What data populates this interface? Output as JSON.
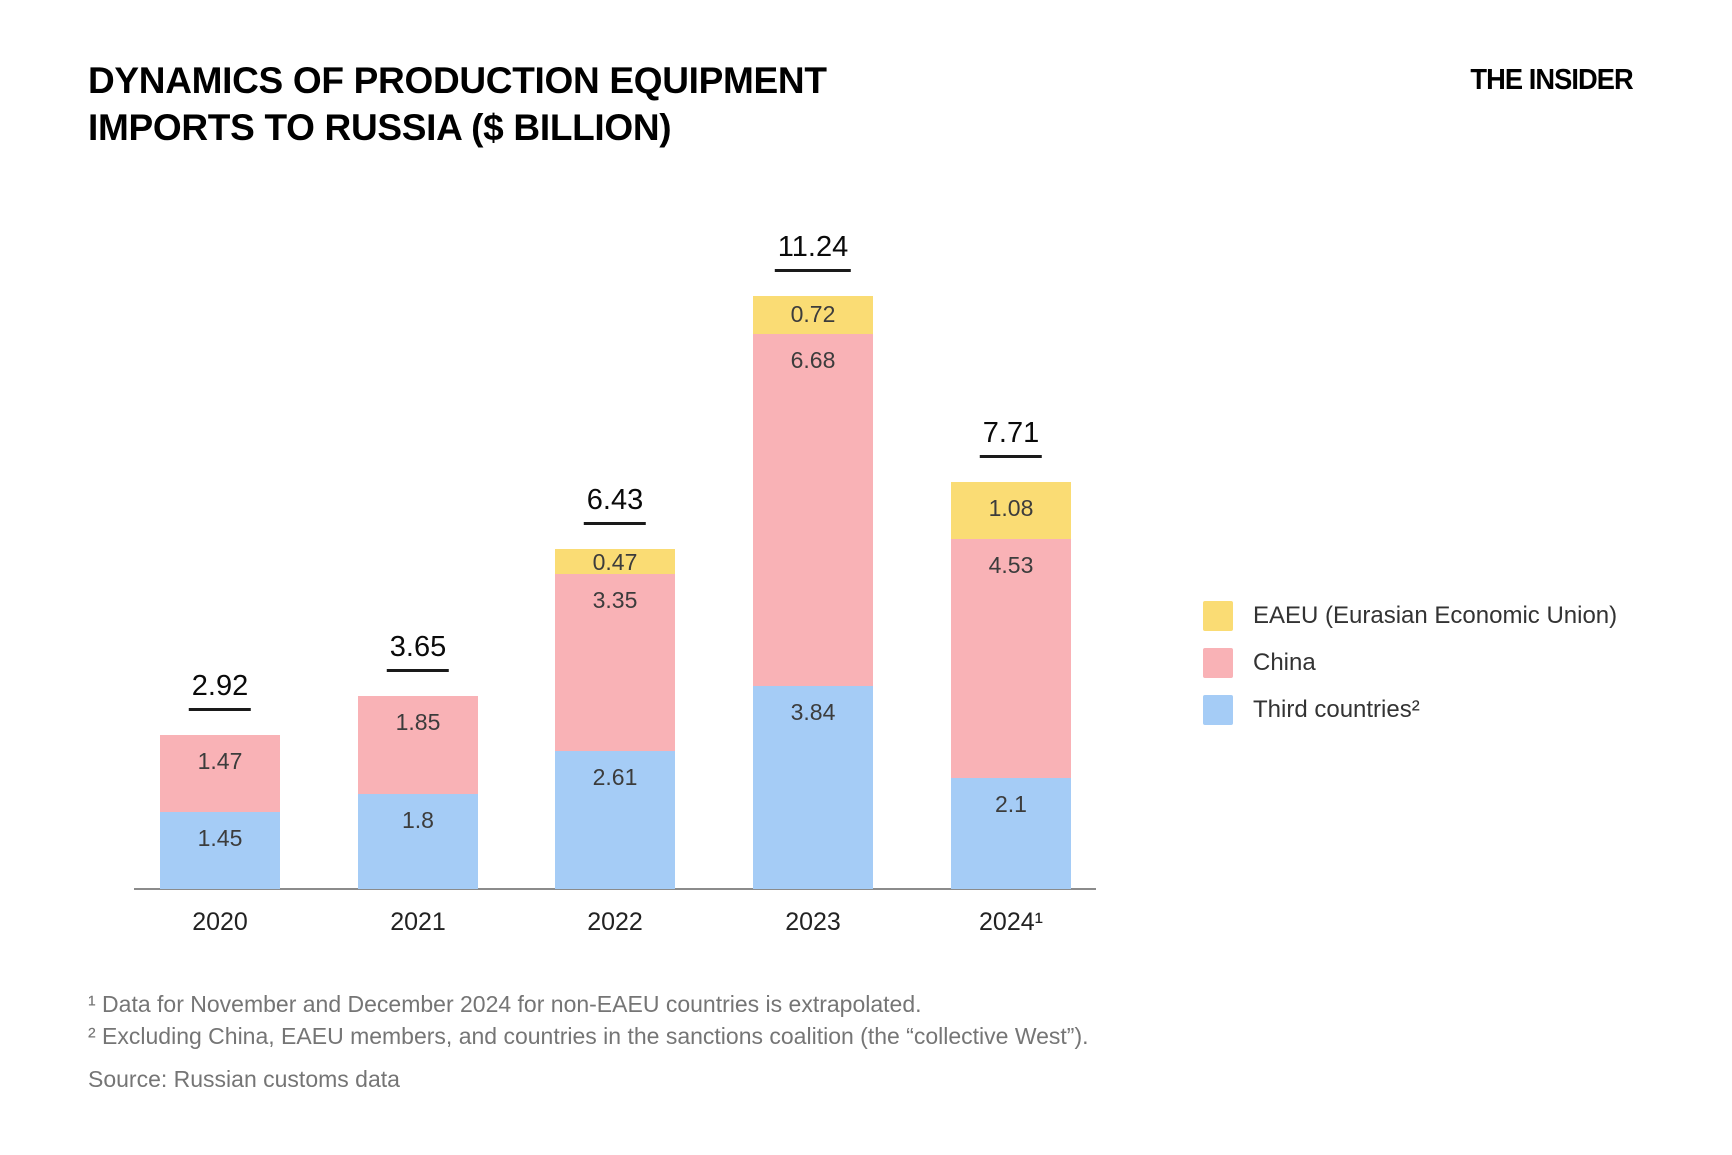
{
  "header": {
    "title_line1": "DYNAMICS OF PRODUCTION EQUIPMENT",
    "title_line2": "IMPORTS TO RUSSIA ($ BILLION)",
    "logo": "THE INSIDER"
  },
  "chart_data": {
    "type": "bar",
    "stacked": true,
    "title": "Dynamics of production equipment imports to Russia ($ billion)",
    "categories": [
      "2020",
      "2021",
      "2022",
      "2023",
      "2024¹"
    ],
    "series": [
      {
        "name": "Third countries²",
        "color": "#A5CCF6",
        "values": [
          1.45,
          1.8,
          2.61,
          3.84,
          2.1
        ]
      },
      {
        "name": "China",
        "color": "#F9B2B6",
        "values": [
          1.47,
          1.85,
          3.35,
          6.68,
          4.53
        ]
      },
      {
        "name": "EAEU (Eurasian Economic Union)",
        "color": "#FADC74",
        "values": [
          0,
          0,
          0.47,
          0.72,
          1.08
        ]
      }
    ],
    "totals": [
      2.92,
      3.65,
      6.43,
      11.24,
      7.71
    ],
    "xlabel": "",
    "ylabel": "$ billion",
    "ylim": [
      0,
      12
    ],
    "grid": false,
    "legend_position": "right",
    "bar_label_color": "#3c3c3c",
    "axis_color": "#8b8b8b"
  },
  "legend": {
    "items": [
      {
        "label": "EAEU (Eurasian Economic Union)",
        "color": "#FADC74"
      },
      {
        "label": "China",
        "color": "#F9B2B6"
      },
      {
        "label": "Third countries²",
        "color": "#A5CCF6"
      }
    ]
  },
  "footnotes": {
    "note1": "¹ Data for November and December 2024 for non-EAEU countries is extrapolated.",
    "note2": "² Excluding China, EAEU members, and countries in the sanctions coalition (the “collective West”).",
    "source": "Source: Russian customs data"
  }
}
